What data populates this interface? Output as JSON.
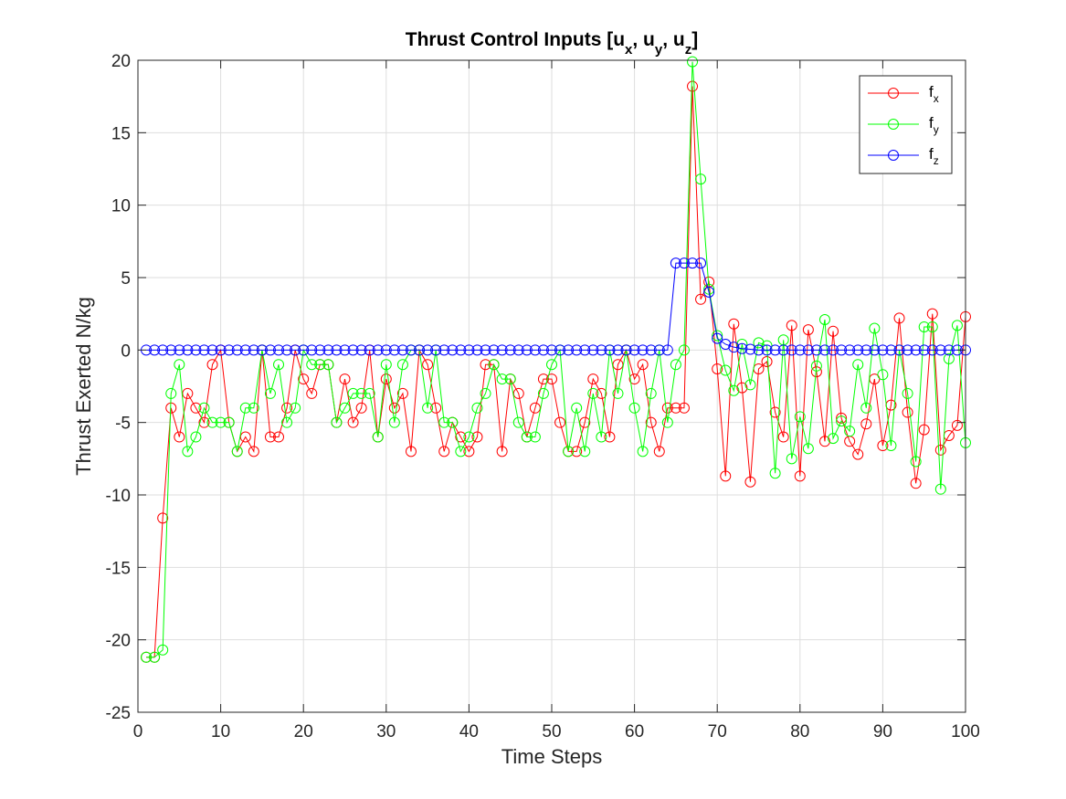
{
  "chart_data": {
    "type": "line",
    "title_parts": [
      {
        "text": "Thrust Control Inputs [u",
        "sub": false
      },
      {
        "text": "x",
        "sub": true
      },
      {
        "text": ", u",
        "sub": false
      },
      {
        "text": "y",
        "sub": true
      },
      {
        "text": ", u",
        "sub": false
      },
      {
        "text": "z",
        "sub": true
      },
      {
        "text": "]",
        "sub": false
      }
    ],
    "xlabel": "Time Steps",
    "ylabel": "Thrust Exerted N/kg",
    "xlim": [
      0,
      100
    ],
    "ylim": [
      -25,
      20
    ],
    "xticks": [
      0,
      10,
      20,
      30,
      40,
      50,
      60,
      70,
      80,
      90,
      100
    ],
    "yticks": [
      -25,
      -20,
      -15,
      -10,
      -5,
      0,
      5,
      10,
      15,
      20
    ],
    "grid": true,
    "legend_position": "top-right",
    "marker": "circle",
    "series": [
      {
        "legend": {
          "base": "f",
          "sub": "x"
        },
        "color": "#ff0000",
        "x": [
          1,
          2,
          3,
          4,
          5,
          6,
          7,
          8,
          9,
          10,
          11,
          12,
          13,
          14,
          15,
          16,
          17,
          18,
          19,
          20,
          21,
          22,
          23,
          24,
          25,
          26,
          27,
          28,
          29,
          30,
          31,
          32,
          33,
          34,
          35,
          36,
          37,
          38,
          39,
          40,
          41,
          42,
          43,
          44,
          45,
          46,
          47,
          48,
          49,
          50,
          51,
          52,
          53,
          54,
          55,
          56,
          57,
          58,
          59,
          60,
          61,
          62,
          63,
          64,
          65,
          66,
          67,
          68,
          69,
          70,
          71,
          72,
          73,
          74,
          75,
          76,
          77,
          78,
          79,
          80,
          81,
          82,
          83,
          84,
          85,
          86,
          87,
          88,
          89,
          90,
          91,
          92,
          93,
          94,
          95,
          96,
          97,
          98,
          99,
          100
        ],
        "values": [
          -21.2,
          -21.2,
          -11.6,
          -4,
          -6,
          -3,
          -4,
          -5,
          -1,
          0,
          -5,
          -7,
          -6,
          -7,
          0,
          -6,
          -6,
          -4,
          0,
          -2,
          -3,
          -1,
          -1,
          -5,
          -2,
          -5,
          -4,
          0,
          -6,
          -2,
          -4,
          -3,
          -7,
          0,
          -1,
          -4,
          -7,
          -5,
          -6,
          -7,
          -6,
          -1,
          -1,
          -7,
          -2,
          -3,
          -6,
          -4,
          -2,
          -2,
          -5,
          -7,
          -7,
          -5,
          -2,
          -3,
          -6,
          -1,
          0,
          -2,
          -1,
          -5,
          -7,
          -4,
          -4,
          -4,
          18.2,
          3.5,
          4.7,
          -1.3,
          -8.7,
          1.8,
          -2.6,
          -9.1,
          -1.3,
          -0.8,
          -4.3,
          -6,
          1.7,
          -8.7,
          1.4,
          -1.5,
          -6.3,
          1.3,
          -4.7,
          -6.3,
          -7.2,
          -5.1,
          -2,
          -6.6,
          -3.8,
          2.2,
          -4.3,
          -9.2,
          -5.5,
          2.5,
          -6.9,
          -5.9,
          -5.2,
          2.3
        ]
      },
      {
        "legend": {
          "base": "f",
          "sub": "y"
        },
        "color": "#00ff00",
        "x": [
          1,
          2,
          3,
          4,
          5,
          6,
          7,
          8,
          9,
          10,
          11,
          12,
          13,
          14,
          15,
          16,
          17,
          18,
          19,
          20,
          21,
          22,
          23,
          24,
          25,
          26,
          27,
          28,
          29,
          30,
          31,
          32,
          33,
          34,
          35,
          36,
          37,
          38,
          39,
          40,
          41,
          42,
          43,
          44,
          45,
          46,
          47,
          48,
          49,
          50,
          51,
          52,
          53,
          54,
          55,
          56,
          57,
          58,
          59,
          60,
          61,
          62,
          63,
          64,
          65,
          66,
          67,
          68,
          69,
          70,
          71,
          72,
          73,
          74,
          75,
          76,
          77,
          78,
          79,
          80,
          81,
          82,
          83,
          84,
          85,
          86,
          87,
          88,
          89,
          90,
          91,
          92,
          93,
          94,
          95,
          96,
          97,
          98,
          99,
          100
        ],
        "values": [
          -21.2,
          -21.2,
          -20.7,
          -3,
          -1,
          -7,
          -6,
          -4,
          -5,
          -5,
          -5,
          -7,
          -4,
          -4,
          0,
          -3,
          -1,
          -5,
          -4,
          0,
          -1,
          -1,
          -1,
          -5,
          -4,
          -3,
          -3,
          -3,
          -6,
          -1,
          -5,
          -1,
          0,
          0,
          -4,
          0,
          -5,
          -5,
          -7,
          -6,
          -4,
          -3,
          -1,
          -2,
          -2,
          -5,
          -6,
          -6,
          -3,
          -1,
          0,
          -7,
          -4,
          -7,
          -3,
          -6,
          0,
          -3,
          0,
          -4,
          -7,
          -3,
          0,
          -5,
          -1,
          0,
          19.9,
          11.8,
          4.2,
          1,
          -1.4,
          -2.8,
          0.4,
          -2.4,
          0.5,
          0.3,
          -8.5,
          0.7,
          -7.5,
          -4.6,
          -6.8,
          -1.1,
          2.1,
          -6.1,
          -4.9,
          -5.6,
          -1,
          -4,
          1.5,
          -1.7,
          -6.6,
          0,
          -3,
          -7.7,
          1.6,
          1.6,
          -9.6,
          -0.6,
          1.7,
          -6.4
        ]
      },
      {
        "legend": {
          "base": "f",
          "sub": "z"
        },
        "color": "#0000ff",
        "x": [
          1,
          2,
          3,
          4,
          5,
          6,
          7,
          8,
          9,
          10,
          11,
          12,
          13,
          14,
          15,
          16,
          17,
          18,
          19,
          20,
          21,
          22,
          23,
          24,
          25,
          26,
          27,
          28,
          29,
          30,
          31,
          32,
          33,
          34,
          35,
          36,
          37,
          38,
          39,
          40,
          41,
          42,
          43,
          44,
          45,
          46,
          47,
          48,
          49,
          50,
          51,
          52,
          53,
          54,
          55,
          56,
          57,
          58,
          59,
          60,
          61,
          62,
          63,
          64,
          65,
          66,
          67,
          68,
          69,
          70,
          71,
          72,
          73,
          74,
          75,
          76,
          77,
          78,
          79,
          80,
          81,
          82,
          83,
          84,
          85,
          86,
          87,
          88,
          89,
          90,
          91,
          92,
          93,
          94,
          95,
          96,
          97,
          98,
          99,
          100
        ],
        "values": [
          0,
          0,
          0,
          0,
          0,
          0,
          0,
          0,
          0,
          0,
          0,
          0,
          0,
          0,
          0,
          0,
          0,
          0,
          0,
          0,
          0,
          0,
          0,
          0,
          0,
          0,
          0,
          0,
          0,
          0,
          0,
          0,
          0,
          0,
          0,
          0,
          0,
          0,
          0,
          0,
          0,
          0,
          0,
          0,
          0,
          0,
          0,
          0,
          0,
          0,
          0,
          0,
          0,
          0,
          0,
          0,
          0,
          0,
          0,
          0,
          0,
          0,
          0,
          0,
          6,
          6,
          6,
          6,
          4,
          0.8,
          0.4,
          0.2,
          0.1,
          0.05,
          0,
          0,
          0,
          0,
          0,
          0,
          0,
          0,
          0,
          0,
          0,
          0,
          0,
          0,
          0,
          0,
          0,
          0,
          0,
          0,
          0,
          0,
          0,
          0,
          0,
          0
        ]
      }
    ]
  }
}
